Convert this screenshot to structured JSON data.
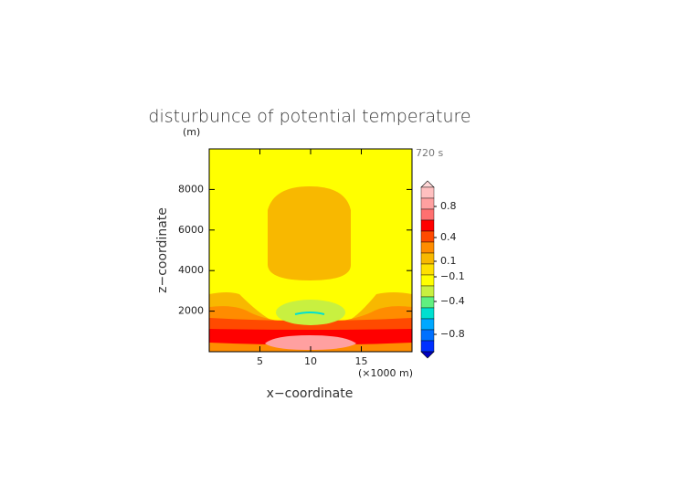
{
  "chart_data": {
    "type": "contour",
    "title": "disturbunce of potential temperature",
    "y_unit": "(m)",
    "time_label": "720 s",
    "x_label": "x−coordinate",
    "y_label": "z−coordinate",
    "x_unit": "(×1000 m)",
    "xlim": [
      0,
      20
    ],
    "ylim": [
      0,
      10000
    ],
    "xticks": [
      5,
      10,
      15
    ],
    "yticks": [
      2000,
      4000,
      6000,
      8000
    ],
    "colorbar": {
      "colors": [
        "#ffd8d8",
        "#ffc0c0",
        "#ffa0a0",
        "#ff7070",
        "#ff0000",
        "#ff4a00",
        "#ff8c00",
        "#f8b800",
        "#ffe000",
        "#ffff00",
        "#c8f040",
        "#60f080",
        "#00e0d0",
        "#00a8ff",
        "#0070ff",
        "#0030ff",
        "#0000c0"
      ],
      "ticks": [
        0.8,
        0.4,
        0.1,
        {
          "value": -0.1,
          "label": "−0.1"
        },
        {
          "value": -0.4,
          "label": "−0.4"
        },
        {
          "value": -0.8,
          "label": "−0.8"
        }
      ]
    }
  }
}
